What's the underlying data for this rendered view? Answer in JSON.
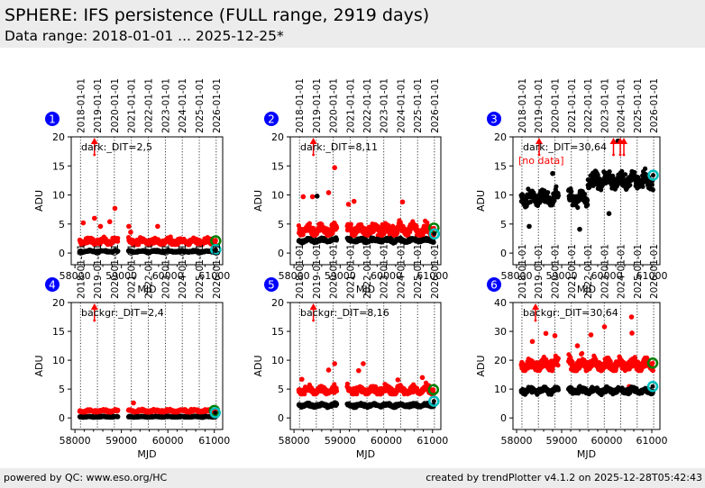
{
  "header": {
    "title": "SPHERE: IFS persistence (FULL range, 2919 days)",
    "subtitle": "Data range: 2018-01-01 ... 2025-12-25*"
  },
  "footer": {
    "left": "powered by QC: www.eso.org/HC",
    "right": "created by trendPlotter v4.1.2 on 2025-12-28T05:42:43"
  },
  "colors": {
    "series_upper": "#ff0000",
    "series_lower": "#000000",
    "last_upper_ring": "#008000",
    "last_lower_ring": "#00bfbf",
    "badge": "#0000ff",
    "no_data": "#ff0000",
    "outlier_arrow": "#ff0000"
  },
  "chart_data": [
    {
      "type": "scatter",
      "panel_number": "1",
      "label": "dark:_DIT=2,5",
      "xlabel": "MJD",
      "ylabel": "ADU",
      "xlim": [
        57920,
        61180
      ],
      "ylim": [
        -2,
        20
      ],
      "xticks": [
        58000,
        59000,
        60000,
        61000
      ],
      "yticks": [
        0,
        5,
        10,
        15,
        20
      ],
      "date_ticks": [
        "2018-01-01",
        "2019-01-01",
        "2020-01-01",
        "2021-01-01",
        "2022-01-01",
        "2023-01-01",
        "2024-01-01",
        "2025-01-01",
        "2026-01-01"
      ],
      "date_tick_mjd": [
        58119,
        58484,
        58849,
        59215,
        59580,
        59945,
        60310,
        60676,
        61041
      ],
      "segments": [
        [
          58100,
          58930
        ],
        [
          59150,
          61030
        ]
      ],
      "series": [
        {
          "name": "upper",
          "color": "#ff0000",
          "level": 2.0,
          "spread": 0.9,
          "outliers": [
            [
              58180,
              5.2
            ],
            [
              58420,
              6.0
            ],
            [
              58550,
              4.6
            ],
            [
              58750,
              5.4
            ],
            [
              58860,
              7.7
            ],
            [
              59160,
              4.6
            ],
            [
              59200,
              3.6
            ],
            [
              59780,
              4.6
            ]
          ]
        },
        {
          "name": "lower",
          "color": "#000000",
          "level": 0.3,
          "spread": 0.25,
          "outliers": []
        }
      ],
      "last_upper": [
        61030,
        2.1
      ],
      "last_lower": [
        61030,
        0.6
      ],
      "arrows_mjd": [
        58420
      ],
      "no_data": false
    },
    {
      "type": "scatter",
      "panel_number": "2",
      "label": "dark:_DIT=8,11",
      "xlabel": "MJD",
      "ylabel": "ADU",
      "xlim": [
        57920,
        61180
      ],
      "ylim": [
        -2,
        20
      ],
      "xticks": [
        58000,
        59000,
        60000,
        61000
      ],
      "yticks": [
        0,
        5,
        10,
        15,
        20
      ],
      "date_ticks": [
        "2018-01-01",
        "2019-01-01",
        "2020-01-01",
        "2021-01-01",
        "2022-01-01",
        "2023-01-01",
        "2024-01-01",
        "2025-01-01",
        "2026-01-01"
      ],
      "date_tick_mjd": [
        58119,
        58484,
        58849,
        59215,
        59580,
        59945,
        60310,
        60676,
        61041
      ],
      "segments": [
        [
          58100,
          58930
        ],
        [
          59150,
          61030
        ]
      ],
      "series": [
        {
          "name": "upper",
          "color": "#ff0000",
          "level": 4.0,
          "spread": 1.6,
          "outliers": [
            [
              58200,
              9.7
            ],
            [
              58400,
              9.7
            ],
            [
              58750,
              10.4
            ],
            [
              58880,
              14.7
            ],
            [
              59180,
              8.4
            ],
            [
              59300,
              8.9
            ],
            [
              60350,
              8.8
            ]
          ]
        },
        {
          "name": "lower",
          "color": "#000000",
          "level": 2.2,
          "spread": 0.5,
          "outliers": [
            [
              58500,
              9.8
            ]
          ]
        }
      ],
      "last_upper": [
        61030,
        4.3
      ],
      "last_lower": [
        61040,
        3.3
      ],
      "arrows_mjd": [
        58420
      ],
      "no_data": false
    },
    {
      "type": "scatter",
      "panel_number": "3",
      "label": "dark:_DIT=30,64",
      "xlabel": "MJD",
      "ylabel": "ADU",
      "xlim": [
        57920,
        61180
      ],
      "ylim": [
        -2,
        20
      ],
      "xticks": [
        58000,
        59000,
        60000,
        61000
      ],
      "yticks": [
        0,
        5,
        10,
        15,
        20
      ],
      "date_ticks": [
        "2018-01-01",
        "2019-01-01",
        "2020-01-01",
        "2021-01-01",
        "2022-01-01",
        "2023-01-01",
        "2024-01-01",
        "2025-01-01",
        "2026-01-01"
      ],
      "date_tick_mjd": [
        58119,
        58484,
        58849,
        59215,
        59580,
        59945,
        60310,
        60676,
        61041
      ],
      "segments": [
        [
          58100,
          58930
        ],
        [
          59150,
          59580
        ],
        [
          59580,
          61030
        ]
      ],
      "series": [
        {
          "name": "lower",
          "color": "#000000",
          "level": 9.5,
          "spread": 2.2,
          "outliers": [
            [
              58280,
              4.6
            ],
            [
              58800,
              13.7
            ],
            [
              59400,
              4.1
            ],
            [
              60250,
              19.3
            ],
            [
              60050,
              6.8
            ]
          ]
        }
      ],
      "last_upper": null,
      "last_lower": [
        61030,
        13.4
      ],
      "arrows_mjd": [
        58500,
        60150,
        60300,
        60380
      ],
      "no_data": true,
      "no_data_label": "[no data]"
    },
    {
      "type": "scatter",
      "panel_number": "4",
      "label": "backgr:_DIT=2,4",
      "xlabel": "MJD",
      "ylabel": "ADU",
      "xlim": [
        57920,
        61180
      ],
      "ylim": [
        -2,
        20
      ],
      "xticks": [
        58000,
        59000,
        60000,
        61000
      ],
      "yticks": [
        0,
        5,
        10,
        15,
        20
      ],
      "date_ticks": [
        "2018-01-01",
        "2019-01-01",
        "2020-01-01",
        "2021-01-01",
        "2022-01-01",
        "2023-01-01",
        "2024-01-01",
        "2025-01-01",
        "2026-01-01"
      ],
      "date_tick_mjd": [
        58119,
        58484,
        58849,
        59215,
        59580,
        59945,
        60310,
        60676,
        61041
      ],
      "segments": [
        [
          58100,
          58930
        ],
        [
          59150,
          61030
        ]
      ],
      "series": [
        {
          "name": "upper",
          "color": "#ff0000",
          "level": 1.2,
          "spread": 0.4,
          "outliers": [
            [
              59260,
              2.6
            ]
          ]
        },
        {
          "name": "lower",
          "color": "#000000",
          "level": 0.2,
          "spread": 0.15,
          "outliers": []
        }
      ],
      "last_upper": [
        61000,
        1.3
      ],
      "last_lower": [
        61020,
        0.9
      ],
      "arrows_mjd": [
        58420
      ],
      "no_data": false
    },
    {
      "type": "scatter",
      "panel_number": "5",
      "label": "backgr:_DIT=8,16",
      "xlabel": "MJD",
      "ylabel": "ADU",
      "xlim": [
        57920,
        61180
      ],
      "ylim": [
        -2,
        20
      ],
      "xticks": [
        58000,
        59000,
        60000,
        61000
      ],
      "yticks": [
        0,
        5,
        10,
        15,
        20
      ],
      "date_ticks": [
        "2018-01-01",
        "2019-01-01",
        "2020-01-01",
        "2021-01-01",
        "2022-01-01",
        "2023-01-01",
        "2024-01-01",
        "2025-01-01",
        "2026-01-01"
      ],
      "date_tick_mjd": [
        58119,
        58484,
        58849,
        59215,
        59580,
        59945,
        60310,
        60676,
        61041
      ],
      "segments": [
        [
          58100,
          58930
        ],
        [
          59150,
          61030
        ]
      ],
      "series": [
        {
          "name": "upper",
          "color": "#ff0000",
          "level": 4.8,
          "spread": 1.1,
          "outliers": [
            [
              58170,
              6.7
            ],
            [
              58750,
              8.3
            ],
            [
              58880,
              9.4
            ],
            [
              59400,
              8.2
            ],
            [
              59500,
              9.4
            ],
            [
              60250,
              6.6
            ],
            [
              60780,
              7.0
            ]
          ]
        },
        {
          "name": "lower",
          "color": "#000000",
          "level": 2.2,
          "spread": 0.5,
          "outliers": []
        }
      ],
      "last_upper": [
        61020,
        4.9
      ],
      "last_lower": [
        61030,
        2.9
      ],
      "arrows_mjd": [
        58420
      ],
      "no_data": false
    },
    {
      "type": "scatter",
      "panel_number": "6",
      "label": "backgr:_DIT=30,64",
      "xlabel": "MJD",
      "ylabel": "ADU",
      "xlim": [
        57920,
        61180
      ],
      "ylim": [
        -4,
        40
      ],
      "xticks": [
        58000,
        59000,
        60000,
        61000
      ],
      "yticks": [
        0,
        10,
        20,
        30,
        40
      ],
      "date_ticks": [
        "2018-01-01",
        "2019-01-01",
        "2020-01-01",
        "2021-01-01",
        "2022-01-01",
        "2023-01-01",
        "2024-01-01",
        "2025-01-01",
        "2026-01-01"
      ],
      "date_tick_mjd": [
        58119,
        58484,
        58849,
        59215,
        59580,
        59945,
        60310,
        60676,
        61041
      ],
      "segments": [
        [
          58100,
          58930
        ],
        [
          59150,
          61030
        ]
      ],
      "series": [
        {
          "name": "upper",
          "color": "#ff0000",
          "level": 18.5,
          "spread": 3.5,
          "outliers": [
            [
              58350,
              26.5
            ],
            [
              58650,
              29.3
            ],
            [
              58850,
              28.5
            ],
            [
              59350,
              25.0
            ],
            [
              59650,
              28.8
            ],
            [
              59950,
              31.6
            ],
            [
              60550,
              35.0
            ],
            [
              60560,
              29.4
            ],
            [
              59400,
              10.8
            ],
            [
              60500,
              10.9
            ]
          ]
        },
        {
          "name": "lower",
          "color": "#000000",
          "level": 9.5,
          "spread": 1.6,
          "outliers": []
        }
      ],
      "last_upper": [
        61020,
        19.0
      ],
      "last_lower": [
        61020,
        10.9
      ],
      "arrows_mjd": [
        58420
      ],
      "no_data": false
    }
  ]
}
